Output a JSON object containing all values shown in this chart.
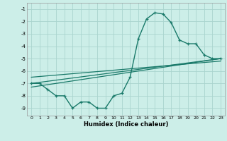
{
  "xlabel": "Humidex (Indice chaleur)",
  "bg_color": "#cceee8",
  "grid_color": "#aad4ce",
  "line_color": "#1a7a6a",
  "xlim": [
    -0.5,
    23.5
  ],
  "ylim": [
    -9.6,
    -0.5
  ],
  "yticks": [
    -1,
    -2,
    -3,
    -4,
    -5,
    -6,
    -7,
    -8,
    -9
  ],
  "xticks": [
    0,
    1,
    2,
    3,
    4,
    5,
    6,
    7,
    8,
    9,
    10,
    11,
    12,
    13,
    14,
    15,
    16,
    17,
    18,
    19,
    20,
    21,
    22,
    23
  ],
  "curve_x": [
    0,
    1,
    2,
    3,
    4,
    5,
    6,
    7,
    8,
    9,
    10,
    11,
    12,
    13,
    14,
    15,
    16,
    17,
    18,
    19,
    20,
    21,
    22,
    23
  ],
  "curve_y": [
    -7.0,
    -7.0,
    -7.5,
    -8.0,
    -8.0,
    -9.0,
    -8.5,
    -8.5,
    -9.0,
    -9.0,
    -8.0,
    -7.8,
    -6.5,
    -3.4,
    -1.8,
    -1.3,
    -1.4,
    -2.1,
    -3.5,
    -3.8,
    -3.8,
    -4.7,
    -5.0,
    -5.0
  ],
  "line1_x": [
    0,
    23
  ],
  "line1_y": [
    -7.0,
    -5.0
  ],
  "line2_x": [
    0,
    23
  ],
  "line2_y": [
    -7.3,
    -5.0
  ],
  "line3_x": [
    0,
    23
  ],
  "line3_y": [
    -6.5,
    -5.2
  ]
}
